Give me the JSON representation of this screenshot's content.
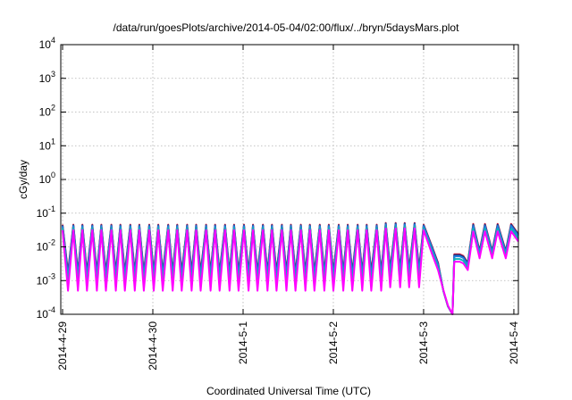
{
  "chart_data": {
    "type": "line",
    "title": "/data/run/goesPlots/archive/2014-05-04/02:00/flux/../bryn/5daysMars.plot",
    "xlabel": "Coordinated Universal Time (UTC)",
    "ylabel": "cGy/day",
    "yscale": "log",
    "ylim_exponent": [
      -4,
      4
    ],
    "ytick_labels": [
      {
        "base": "10",
        "exp": "4"
      },
      {
        "base": "10",
        "exp": "3"
      },
      {
        "base": "10",
        "exp": "2"
      },
      {
        "base": "10",
        "exp": "1"
      },
      {
        "base": "10",
        "exp": "0"
      },
      {
        "base": "10",
        "exp": "-1"
      },
      {
        "base": "10",
        "exp": "-2"
      },
      {
        "base": "10",
        "exp": "-3"
      },
      {
        "base": "10",
        "exp": "-4"
      }
    ],
    "xtick_labels": [
      "2014-4-29",
      "2014-4-30",
      "2014-5-1",
      "2014-5-2",
      "2014-5-3",
      "2014-5-4"
    ],
    "xlim_days": [
      -0.02,
      5.05
    ],
    "grid": true,
    "legend": "none",
    "series": [
      {
        "color": "#e0102a",
        "level_offset": 0.2,
        "dip_extra": 0.25
      },
      {
        "color": "#1e3c8c",
        "level_offset": 0.15,
        "dip_extra": 0.22
      },
      {
        "color": "#2080e0",
        "level_offset": 0.05,
        "dip_extra": 0.18
      },
      {
        "color": "#10b0b8",
        "level_offset": -0.15,
        "dip_extra": 0.1
      },
      {
        "color": "#ff00ff",
        "level_offset": -0.35,
        "dip_extra": 0.0
      }
    ],
    "pattern_high": [
      [
        0.0,
        -1.4
      ],
      [
        0.12,
        -1.4
      ],
      [
        0.22,
        -1.4
      ],
      [
        0.33,
        -1.4
      ],
      [
        0.43,
        -1.4
      ],
      [
        0.54,
        -1.4
      ],
      [
        0.64,
        -1.4
      ],
      [
        0.75,
        -1.4
      ],
      [
        0.85,
        -1.4
      ],
      [
        0.96,
        -1.4
      ],
      [
        1.06,
        -1.4
      ],
      [
        1.17,
        -1.4
      ],
      [
        1.27,
        -1.4
      ],
      [
        1.38,
        -1.4
      ],
      [
        1.48,
        -1.4
      ],
      [
        1.59,
        -1.4
      ],
      [
        1.69,
        -1.4
      ],
      [
        1.8,
        -1.4
      ],
      [
        1.9,
        -1.4
      ],
      [
        2.01,
        -1.4
      ],
      [
        2.11,
        -1.4
      ],
      [
        2.22,
        -1.4
      ],
      [
        2.32,
        -1.4
      ],
      [
        2.43,
        -1.4
      ],
      [
        2.53,
        -1.4
      ],
      [
        2.64,
        -1.4
      ],
      [
        2.74,
        -1.4
      ],
      [
        2.85,
        -1.4
      ],
      [
        2.95,
        -1.4
      ],
      [
        3.06,
        -1.4
      ],
      [
        3.16,
        -1.4
      ],
      [
        3.27,
        -1.4
      ],
      [
        3.37,
        -1.4
      ],
      [
        3.48,
        -1.4
      ],
      [
        3.58,
        -1.35
      ],
      [
        3.69,
        -1.35
      ],
      [
        3.79,
        -1.35
      ],
      [
        3.9,
        -1.35
      ],
      [
        4.0,
        -1.4
      ]
    ],
    "pattern_low": [
      [
        0.06,
        -2.95
      ],
      [
        0.17,
        -2.95
      ],
      [
        0.27,
        -2.95
      ],
      [
        0.38,
        -2.95
      ],
      [
        0.48,
        -2.95
      ],
      [
        0.59,
        -2.95
      ],
      [
        0.69,
        -2.95
      ],
      [
        0.8,
        -2.95
      ],
      [
        0.9,
        -2.95
      ],
      [
        1.01,
        -2.95
      ],
      [
        1.11,
        -2.95
      ],
      [
        1.22,
        -2.95
      ],
      [
        1.32,
        -2.95
      ],
      [
        1.43,
        -2.95
      ],
      [
        1.53,
        -2.95
      ],
      [
        1.64,
        -2.95
      ],
      [
        1.74,
        -2.95
      ],
      [
        1.85,
        -2.95
      ],
      [
        1.95,
        -2.95
      ],
      [
        2.06,
        -2.95
      ],
      [
        2.16,
        -2.95
      ],
      [
        2.27,
        -2.95
      ],
      [
        2.37,
        -2.95
      ],
      [
        2.48,
        -2.95
      ],
      [
        2.58,
        -2.95
      ],
      [
        2.69,
        -2.95
      ],
      [
        2.79,
        -2.95
      ],
      [
        2.9,
        -2.95
      ],
      [
        3.0,
        -2.95
      ],
      [
        3.11,
        -2.95
      ],
      [
        3.21,
        -2.95
      ],
      [
        3.32,
        -2.95
      ],
      [
        3.42,
        -2.95
      ],
      [
        3.53,
        -2.95
      ],
      [
        3.63,
        -2.85
      ],
      [
        3.74,
        -2.85
      ],
      [
        3.84,
        -2.85
      ],
      [
        3.95,
        -2.85
      ]
    ],
    "tail": [
      [
        4.0,
        -1.4
      ],
      [
        4.09,
        -2.05
      ],
      [
        4.16,
        -2.55
      ],
      [
        4.22,
        -3.15
      ],
      [
        4.27,
        -3.6
      ],
      [
        4.32,
        -4.0
      ],
      [
        4.34,
        -2.3
      ],
      [
        4.4,
        -2.3
      ],
      [
        4.44,
        -2.35
      ],
      [
        4.49,
        -2.55
      ],
      [
        4.55,
        -1.4
      ],
      [
        4.62,
        -2.2
      ],
      [
        4.68,
        -1.4
      ],
      [
        4.76,
        -2.2
      ],
      [
        4.82,
        -1.4
      ],
      [
        4.91,
        -2.2
      ],
      [
        4.97,
        -1.4
      ],
      [
        5.05,
        -1.7
      ]
    ]
  }
}
